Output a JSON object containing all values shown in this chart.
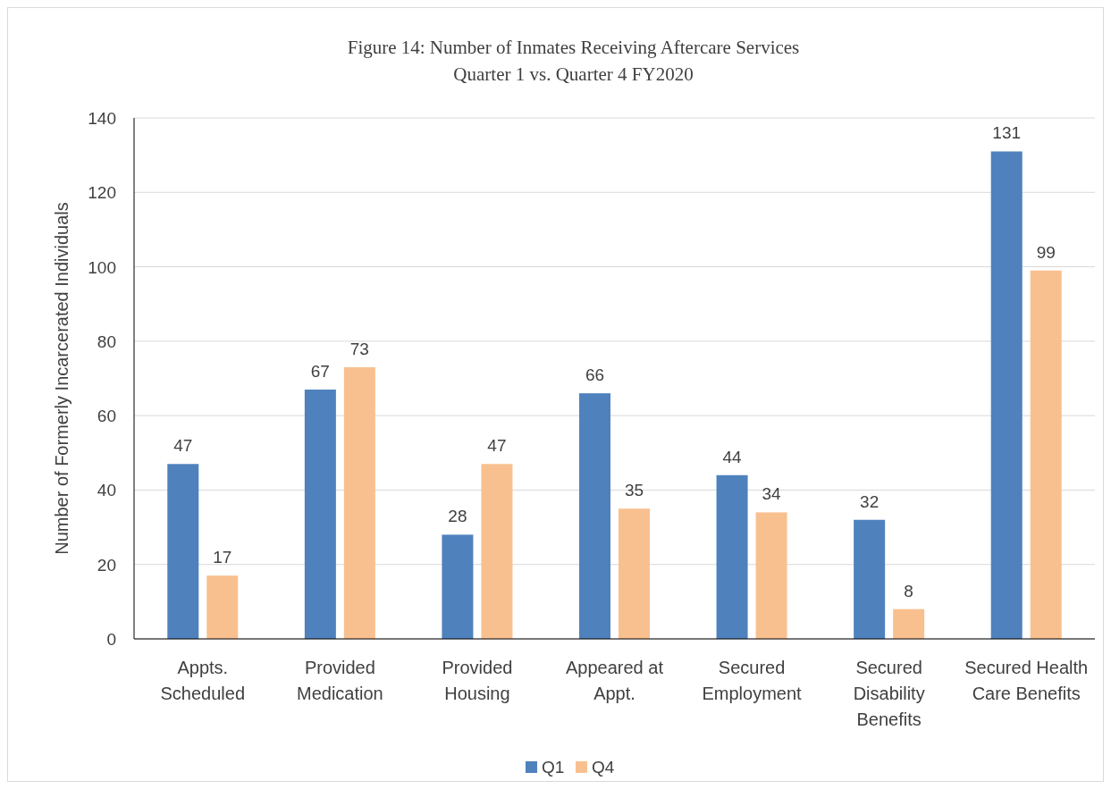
{
  "chart_data": {
    "type": "bar",
    "title": "Figure 14: Number of Inmates Receiving Aftercare Services",
    "subtitle": "Quarter 1 vs. Quarter 4 FY2020",
    "ylabel": "Number of Formerly Incarcerated Individuals",
    "categories": [
      "Appts. Scheduled",
      "Provided Medication",
      "Provided Housing",
      "Appeared at Appt.",
      "Secured Employment",
      "Secured Disability Benefits",
      "Secured Health Care Benefits"
    ],
    "series": [
      {
        "name": "Q1",
        "color": "#4f81bd",
        "values": [
          47,
          67,
          28,
          66,
          44,
          32,
          131
        ]
      },
      {
        "name": "Q4",
        "color": "#f9c08f",
        "values": [
          17,
          73,
          47,
          35,
          34,
          8,
          99
        ]
      }
    ],
    "ylim": [
      0,
      140
    ],
    "yticks": [
      0,
      20,
      40,
      60,
      80,
      100,
      120,
      140
    ],
    "grid": "y",
    "legend": "bottom",
    "data_labels": true
  }
}
